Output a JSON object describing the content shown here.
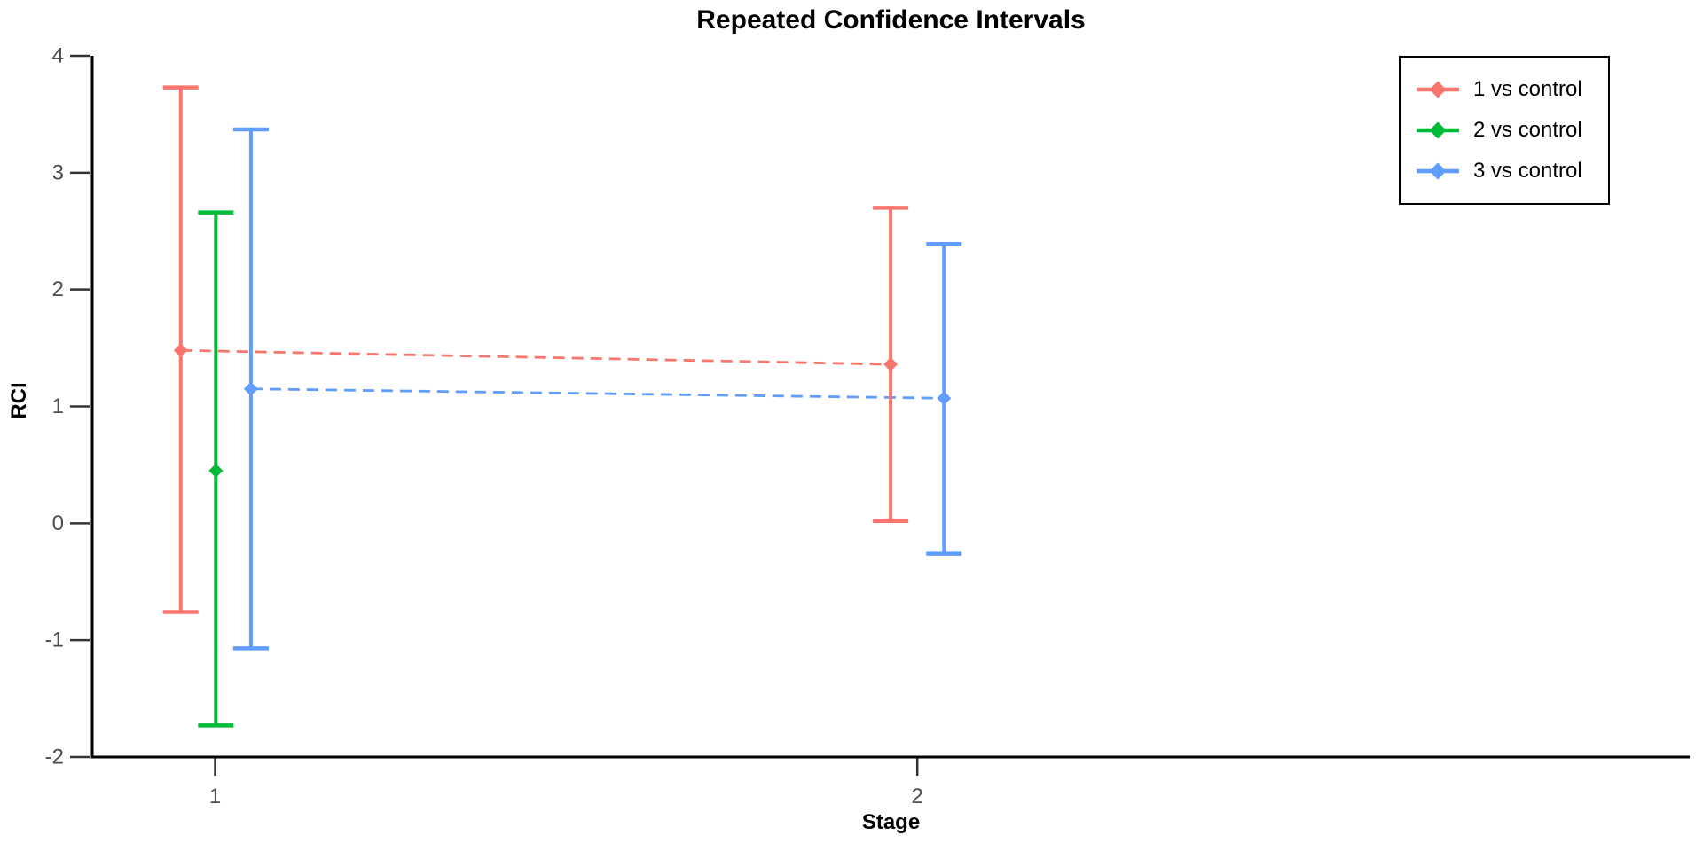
{
  "chart_data": {
    "type": "errorbar",
    "title": "Repeated Confidence Intervals",
    "xlabel": "Stage",
    "ylabel": "RCI",
    "xlim": [
      0.825,
      3.1
    ],
    "ylim": [
      -2,
      4
    ],
    "xticks": [
      1,
      2
    ],
    "yticks": [
      4,
      3,
      2,
      1,
      0,
      -1,
      -2
    ],
    "grid": false,
    "legend_position": "top-right",
    "connector_style": "dashed",
    "marker_shape": "diamond",
    "axis_color": "#000000",
    "tick_label_color": "#4d4d4d",
    "series": [
      {
        "name": "1 vs control",
        "color": "#F8766D",
        "points": [
          {
            "stage": 1,
            "x_offset": -0.049,
            "estimate": 1.48,
            "lower": -0.76,
            "upper": 3.73
          },
          {
            "stage": 2,
            "x_offset": -0.038,
            "estimate": 1.36,
            "lower": 0.02,
            "upper": 2.7
          }
        ]
      },
      {
        "name": "2 vs control",
        "color": "#00BA38",
        "points": [
          {
            "stage": 1,
            "x_offset": 0.001,
            "estimate": 0.45,
            "lower": -1.73,
            "upper": 2.66
          }
        ]
      },
      {
        "name": "3 vs control",
        "color": "#619CFF",
        "points": [
          {
            "stage": 1,
            "x_offset": 0.051,
            "estimate": 1.15,
            "lower": -1.07,
            "upper": 3.37
          },
          {
            "stage": 2,
            "x_offset": 0.038,
            "estimate": 1.07,
            "lower": -0.26,
            "upper": 2.39
          }
        ]
      }
    ]
  }
}
